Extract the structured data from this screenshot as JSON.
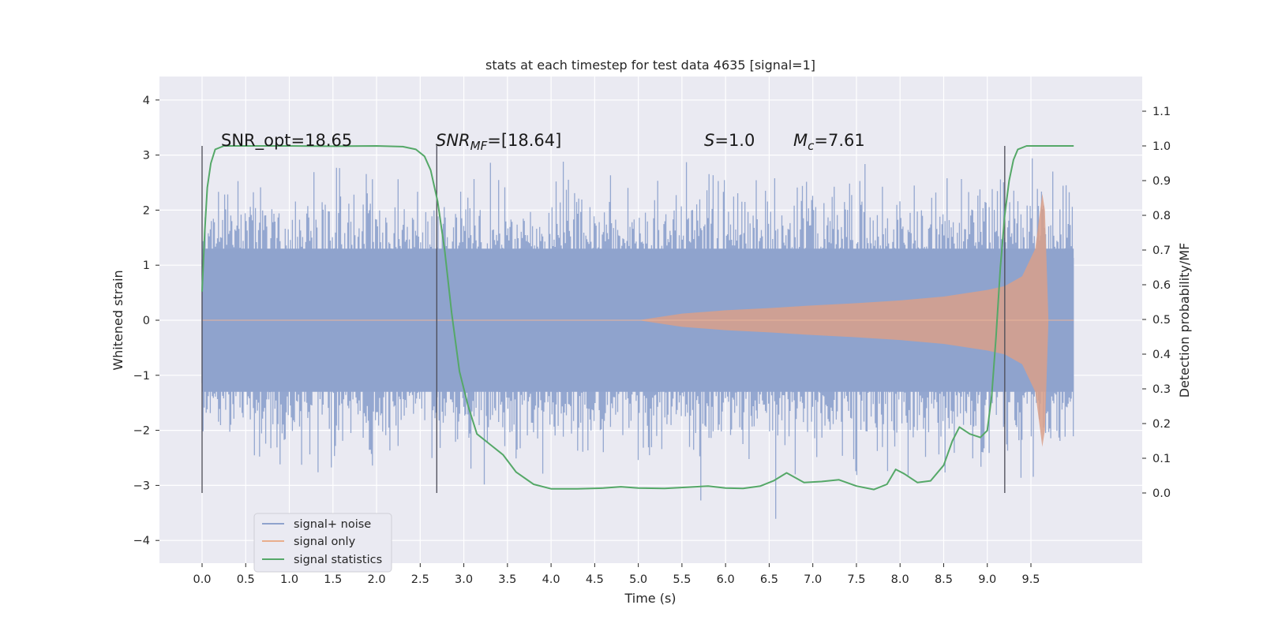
{
  "chart_data": {
    "type": "line",
    "title": "stats at each timestep for test data 4635 [signal=1]",
    "xlabel": "Time (s)",
    "ylabel_left": "Whitened strain",
    "ylabel_right": "Detection probability/MF",
    "xlim": [
      -0.5,
      10.5
    ],
    "ylim_left": [
      -4.4,
      4.4
    ],
    "ylim_right": [
      -0.2,
      1.2
    ],
    "x_ticks": [
      "0.0",
      "0.5",
      "1.0",
      "1.5",
      "2.0",
      "2.5",
      "3.0",
      "3.5",
      "4.0",
      "4.5",
      "5.0",
      "5.5",
      "6.0",
      "6.5",
      "7.0",
      "7.5",
      "8.0",
      "8.5",
      "9.0",
      "9.5"
    ],
    "y_ticks_left": [
      "−4",
      "−3",
      "−2",
      "−1",
      "0",
      "1",
      "2",
      "3",
      "4"
    ],
    "y_ticks_right": [
      "0.0",
      "0.1",
      "0.2",
      "0.3",
      "0.4",
      "0.5",
      "0.6",
      "0.7",
      "0.8",
      "0.9",
      "1.0",
      "1.1"
    ],
    "grid": true,
    "background": "#eaeaf2",
    "legend_position": "lower-left",
    "annotations": {
      "snr_opt": "SNR_opt=18.65",
      "snr_mf_main": "SNR",
      "snr_mf_sub": "MF",
      "snr_mf_value": "=[18.64]",
      "s_main": "S",
      "s_value": "=1.0",
      "mc_main": "M",
      "mc_sub": "c",
      "mc_value": "=7.61"
    },
    "vertical_lines_x": [
      0.0,
      2.69,
      9.2
    ],
    "series": [
      {
        "name": "signal+ noise",
        "color": "#8fa3cd",
        "description_range": "dense noise, approx ±1.3 core with spikes up to ±4"
      },
      {
        "name": "signal only",
        "color": "#dd8452",
        "envelope": {
          "x": [
            5.0,
            5.5,
            6.0,
            6.5,
            7.0,
            7.5,
            8.0,
            8.5,
            9.0,
            9.2,
            9.4,
            9.55,
            9.63,
            9.66,
            9.7
          ],
          "y": [
            0.0,
            0.12,
            0.18,
            0.22,
            0.27,
            0.31,
            0.36,
            0.43,
            0.55,
            0.62,
            0.8,
            1.3,
            2.3,
            2.0,
            0.05
          ]
        }
      },
      {
        "name": "signal statistics",
        "color": "#55a868",
        "axis": "right",
        "x": [
          0.0,
          0.03,
          0.06,
          0.1,
          0.15,
          0.25,
          0.5,
          1.0,
          1.5,
          2.0,
          2.3,
          2.45,
          2.55,
          2.62,
          2.7,
          2.78,
          2.86,
          2.95,
          3.05,
          3.15,
          3.3,
          3.45,
          3.6,
          3.8,
          4.0,
          4.3,
          4.6,
          4.8,
          5.0,
          5.3,
          5.6,
          5.8,
          6.0,
          6.2,
          6.4,
          6.55,
          6.7,
          6.9,
          7.1,
          7.3,
          7.5,
          7.7,
          7.85,
          7.95,
          8.05,
          8.2,
          8.35,
          8.5,
          8.6,
          8.68,
          8.8,
          8.92,
          9.0,
          9.05,
          9.1,
          9.15,
          9.2,
          9.25,
          9.3,
          9.35,
          9.45,
          9.6,
          9.8,
          9.99
        ],
        "y": [
          0.58,
          0.75,
          0.88,
          0.95,
          0.99,
          1.0,
          1.0,
          1.0,
          0.999,
          1.0,
          0.998,
          0.99,
          0.97,
          0.93,
          0.84,
          0.7,
          0.52,
          0.35,
          0.25,
          0.17,
          0.14,
          0.11,
          0.06,
          0.025,
          0.012,
          0.012,
          0.014,
          0.018,
          0.014,
          0.013,
          0.017,
          0.02,
          0.014,
          0.013,
          0.02,
          0.035,
          0.058,
          0.03,
          0.033,
          0.038,
          0.02,
          0.01,
          0.025,
          0.068,
          0.055,
          0.03,
          0.035,
          0.08,
          0.15,
          0.19,
          0.17,
          0.16,
          0.18,
          0.28,
          0.45,
          0.65,
          0.8,
          0.9,
          0.96,
          0.99,
          1.0,
          1.0,
          1.0,
          1.0
        ]
      }
    ]
  }
}
